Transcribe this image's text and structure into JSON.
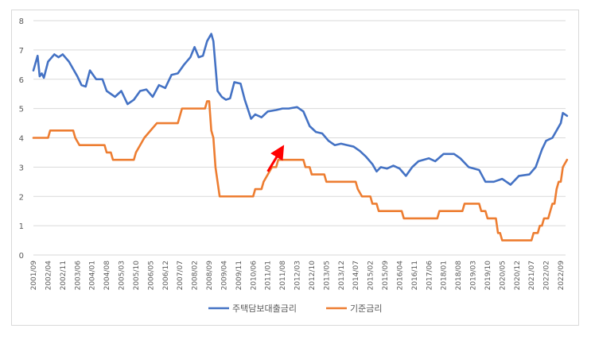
{
  "chart_data": {
    "type": "line",
    "title": "",
    "xlabel": "",
    "ylabel": "",
    "ylim": [
      0,
      8
    ],
    "y_ticks": [
      "0",
      "1",
      "2",
      "3",
      "4",
      "5",
      "6",
      "7",
      "8"
    ],
    "grid": "horizontal",
    "legend_position": "bottom",
    "x_ticks": [
      "2001/09",
      "2002/04",
      "2002/11",
      "2003/06",
      "2004/01",
      "2004/08",
      "2005/03",
      "2005/10",
      "2006/05",
      "2006/12",
      "2007/07",
      "2008/02",
      "2008/09",
      "2009/04",
      "2009/11",
      "2010/06",
      "2011/01",
      "2011/08",
      "2012/03",
      "2012/10",
      "2013/05",
      "2013/12",
      "2014/07",
      "2015/02",
      "2015/09",
      "2016/04",
      "2016/11",
      "2017/06",
      "2018/01",
      "2018/08",
      "2019/03",
      "2019/10",
      "2020/05",
      "2020/12",
      "2021/07",
      "2022/02",
      "2022/09"
    ],
    "series": [
      {
        "name": "주택담보대출금리",
        "color": "#4472c4",
        "points": [
          [
            "2001/09",
            6.3
          ],
          [
            "2001/11",
            6.8
          ],
          [
            "2001/12",
            6.1
          ],
          [
            "2002/01",
            6.2
          ],
          [
            "2002/02",
            6.05
          ],
          [
            "2002/04",
            6.6
          ],
          [
            "2002/07",
            6.85
          ],
          [
            "2002/09",
            6.75
          ],
          [
            "2002/11",
            6.85
          ],
          [
            "2003/02",
            6.6
          ],
          [
            "2003/06",
            6.1
          ],
          [
            "2003/08",
            5.8
          ],
          [
            "2003/10",
            5.75
          ],
          [
            "2003/12",
            6.3
          ],
          [
            "2004/03",
            6.0
          ],
          [
            "2004/06",
            6.0
          ],
          [
            "2004/08",
            5.6
          ],
          [
            "2004/12",
            5.4
          ],
          [
            "2005/03",
            5.6
          ],
          [
            "2005/06",
            5.15
          ],
          [
            "2005/09",
            5.3
          ],
          [
            "2005/12",
            5.6
          ],
          [
            "2006/03",
            5.65
          ],
          [
            "2006/06",
            5.4
          ],
          [
            "2006/09",
            5.8
          ],
          [
            "2006/12",
            5.7
          ],
          [
            "2007/03",
            6.15
          ],
          [
            "2007/06",
            6.2
          ],
          [
            "2007/09",
            6.5
          ],
          [
            "2007/12",
            6.75
          ],
          [
            "2008/02",
            7.1
          ],
          [
            "2008/04",
            6.75
          ],
          [
            "2008/06",
            6.8
          ],
          [
            "2008/08",
            7.3
          ],
          [
            "2008/10",
            7.55
          ],
          [
            "2008/11",
            7.3
          ],
          [
            "2009/01",
            5.6
          ],
          [
            "2009/03",
            5.4
          ],
          [
            "2009/05",
            5.3
          ],
          [
            "2009/07",
            5.35
          ],
          [
            "2009/09",
            5.9
          ],
          [
            "2009/12",
            5.85
          ],
          [
            "2010/02",
            5.3
          ],
          [
            "2010/05",
            4.65
          ],
          [
            "2010/07",
            4.8
          ],
          [
            "2010/10",
            4.7
          ],
          [
            "2011/01",
            4.9
          ],
          [
            "2011/05",
            4.95
          ],
          [
            "2011/08",
            5.0
          ],
          [
            "2011/11",
            5.0
          ],
          [
            "2012/03",
            5.05
          ],
          [
            "2012/06",
            4.9
          ],
          [
            "2012/09",
            4.4
          ],
          [
            "2012/12",
            4.2
          ],
          [
            "2013/03",
            4.15
          ],
          [
            "2013/06",
            3.9
          ],
          [
            "2013/09",
            3.75
          ],
          [
            "2013/12",
            3.8
          ],
          [
            "2014/03",
            3.75
          ],
          [
            "2014/06",
            3.7
          ],
          [
            "2014/09",
            3.55
          ],
          [
            "2014/12",
            3.35
          ],
          [
            "2015/03",
            3.1
          ],
          [
            "2015/05",
            2.85
          ],
          [
            "2015/07",
            3.0
          ],
          [
            "2015/10",
            2.95
          ],
          [
            "2016/01",
            3.05
          ],
          [
            "2016/04",
            2.95
          ],
          [
            "2016/07",
            2.7
          ],
          [
            "2016/10",
            3.0
          ],
          [
            "2017/01",
            3.2
          ],
          [
            "2017/06",
            3.3
          ],
          [
            "2017/09",
            3.2
          ],
          [
            "2018/01",
            3.45
          ],
          [
            "2018/06",
            3.45
          ],
          [
            "2018/09",
            3.3
          ],
          [
            "2019/01",
            3.0
          ],
          [
            "2019/06",
            2.9
          ],
          [
            "2019/09",
            2.5
          ],
          [
            "2020/01",
            2.5
          ],
          [
            "2020/05",
            2.6
          ],
          [
            "2020/09",
            2.4
          ],
          [
            "2021/01",
            2.7
          ],
          [
            "2021/06",
            2.75
          ],
          [
            "2021/09",
            3.0
          ],
          [
            "2021/12",
            3.6
          ],
          [
            "2022/02",
            3.9
          ],
          [
            "2022/05",
            4.0
          ],
          [
            "2022/09",
            4.5
          ],
          [
            "2022/10",
            4.85
          ],
          [
            "2022/12",
            4.75
          ]
        ]
      },
      {
        "name": "기준금리",
        "color": "#ed7d31",
        "points": [
          [
            "2001/09",
            4.0
          ],
          [
            "2002/04",
            4.0
          ],
          [
            "2002/05",
            4.25
          ],
          [
            "2003/04",
            4.25
          ],
          [
            "2003/05",
            4.0
          ],
          [
            "2003/07",
            3.75
          ],
          [
            "2004/07",
            3.75
          ],
          [
            "2004/08",
            3.5
          ],
          [
            "2004/10",
            3.5
          ],
          [
            "2004/11",
            3.25
          ],
          [
            "2005/09",
            3.25
          ],
          [
            "2005/10",
            3.5
          ],
          [
            "2005/12",
            3.75
          ],
          [
            "2006/02",
            4.0
          ],
          [
            "2006/05",
            4.25
          ],
          [
            "2006/08",
            4.5
          ],
          [
            "2007/06",
            4.5
          ],
          [
            "2007/07",
            4.75
          ],
          [
            "2007/08",
            5.0
          ],
          [
            "2008/07",
            5.0
          ],
          [
            "2008/08",
            5.25
          ],
          [
            "2008/09",
            5.25
          ],
          [
            "2008/10",
            4.25
          ],
          [
            "2008/11",
            4.0
          ],
          [
            "2008/12",
            3.0
          ],
          [
            "2009/01",
            2.5
          ],
          [
            "2009/02",
            2.0
          ],
          [
            "2010/06",
            2.0
          ],
          [
            "2010/07",
            2.25
          ],
          [
            "2010/10",
            2.25
          ],
          [
            "2010/11",
            2.5
          ],
          [
            "2011/01",
            2.75
          ],
          [
            "2011/03",
            3.0
          ],
          [
            "2011/05",
            3.0
          ],
          [
            "2011/06",
            3.25
          ],
          [
            "2012/06",
            3.25
          ],
          [
            "2012/07",
            3.0
          ],
          [
            "2012/09",
            3.0
          ],
          [
            "2012/10",
            2.75
          ],
          [
            "2013/04",
            2.75
          ],
          [
            "2013/05",
            2.5
          ],
          [
            "2014/07",
            2.5
          ],
          [
            "2014/08",
            2.25
          ],
          [
            "2014/10",
            2.0
          ],
          [
            "2015/02",
            2.0
          ],
          [
            "2015/03",
            1.75
          ],
          [
            "2015/05",
            1.75
          ],
          [
            "2015/06",
            1.5
          ],
          [
            "2016/05",
            1.5
          ],
          [
            "2016/06",
            1.25
          ],
          [
            "2017/10",
            1.25
          ],
          [
            "2017/11",
            1.5
          ],
          [
            "2018/10",
            1.5
          ],
          [
            "2018/11",
            1.75
          ],
          [
            "2019/06",
            1.75
          ],
          [
            "2019/07",
            1.5
          ],
          [
            "2019/09",
            1.5
          ],
          [
            "2019/10",
            1.25
          ],
          [
            "2020/02",
            1.25
          ],
          [
            "2020/03",
            0.75
          ],
          [
            "2020/04",
            0.75
          ],
          [
            "2020/05",
            0.5
          ],
          [
            "2021/07",
            0.5
          ],
          [
            "2021/08",
            0.75
          ],
          [
            "2021/10",
            0.75
          ],
          [
            "2021/11",
            1.0
          ],
          [
            "2021/12",
            1.0
          ],
          [
            "2022/01",
            1.25
          ],
          [
            "2022/03",
            1.25
          ],
          [
            "2022/04",
            1.5
          ],
          [
            "2022/05",
            1.75
          ],
          [
            "2022/06",
            1.75
          ],
          [
            "2022/07",
            2.25
          ],
          [
            "2022/08",
            2.5
          ],
          [
            "2022/09",
            2.5
          ],
          [
            "2022/10",
            3.0
          ],
          [
            "2022/12",
            3.25
          ]
        ]
      }
    ]
  },
  "annotation": {
    "shape": "arrow",
    "color": "#ff0000",
    "from": [
      "2011/01",
      2.85
    ],
    "to": [
      "2011/07",
      3.55
    ]
  }
}
